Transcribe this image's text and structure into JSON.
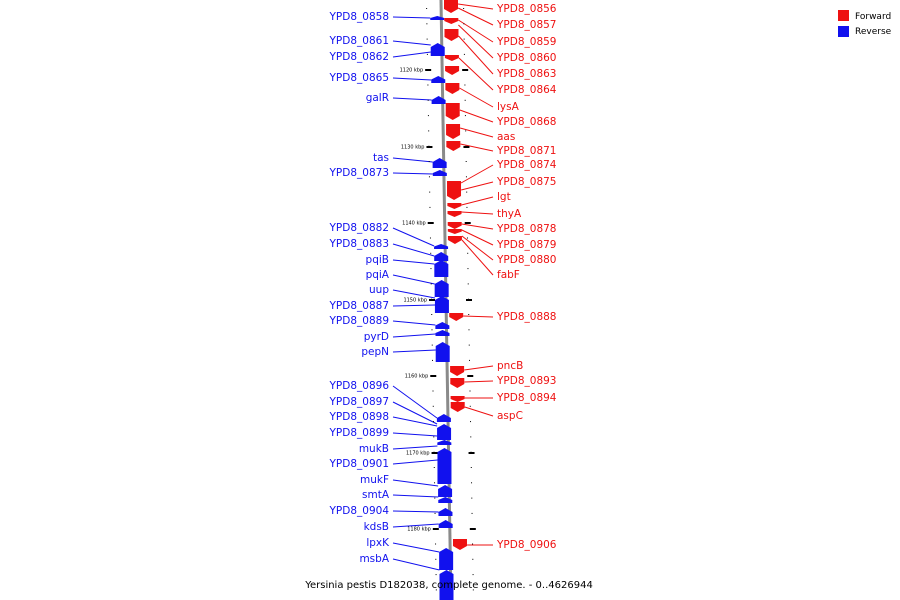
{
  "title": "Yersinia pestis D182038, complete genome. - 0..4626944",
  "legend": [
    {
      "label": "Forward",
      "color": "#ee1111"
    },
    {
      "label": "Reverse",
      "color": "#1111ee"
    }
  ],
  "colors": {
    "forward": "#ee1111",
    "reverse": "#1111ee",
    "backbone": "#8a8a8a",
    "label_line_forward": "#ee1111",
    "label_line_reverse": "#1111ee"
  },
  "ticks": [
    "1120 kbp",
    "1130 kbp",
    "1140 kbp",
    "1150 kbp",
    "1160 kbp",
    "1170 kbp",
    "1180 kbp"
  ],
  "reverse_genes": [
    "YPD8_0858",
    "YPD8_0861",
    "YPD8_0862",
    "YPD8_0865",
    "galR",
    "tas",
    "YPD8_0873",
    "YPD8_0882",
    "YPD8_0883",
    "pqiB",
    "pqiA",
    "uup",
    "YPD8_0887",
    "YPD8_0889",
    "pyrD",
    "pepN",
    "YPD8_0896",
    "YPD8_0897",
    "YPD8_0898",
    "YPD8_0899",
    "mukB",
    "YPD8_0901",
    "mukF",
    "smtA",
    "YPD8_0904",
    "kdsB",
    "lpxK",
    "msbA"
  ],
  "forward_genes": [
    "YPD8_0856",
    "YPD8_0857",
    "YPD8_0859",
    "YPD8_0860",
    "YPD8_0863",
    "YPD8_0864",
    "lysA",
    "YPD8_0868",
    "aas",
    "YPD8_0871",
    "YPD8_0874",
    "YPD8_0875",
    "lgt",
    "thyA",
    "YPD8_0878",
    "YPD8_0879",
    "YPD8_0880",
    "fabF",
    "YPD8_0888",
    "pncB",
    "YPD8_0893",
    "YPD8_0894",
    "aspC",
    "YPD8_0906"
  ]
}
